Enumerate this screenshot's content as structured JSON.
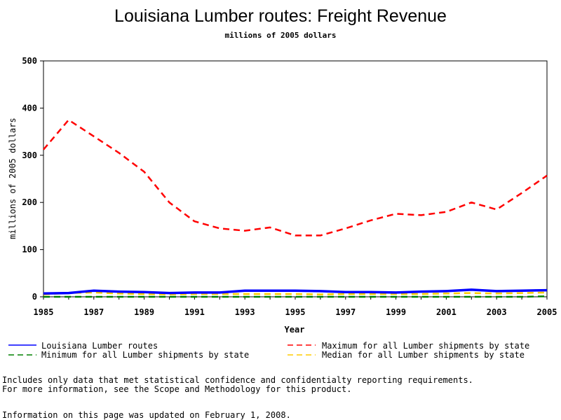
{
  "chart_data": {
    "type": "line",
    "title": "Louisiana Lumber routes: Freight Revenue",
    "subtitle": "millions of 2005 dollars",
    "xlabel": "Year",
    "ylabel": "millions of 2005 dollars",
    "xlim": [
      1985,
      2005
    ],
    "ylim": [
      0,
      500
    ],
    "x_ticks": [
      "1985",
      "1987",
      "1989",
      "1991",
      "1993",
      "1995",
      "1997",
      "1999",
      "2001",
      "2003",
      "2005"
    ],
    "y_ticks": [
      "0",
      "100",
      "200",
      "300",
      "400",
      "500"
    ],
    "grid": false,
    "legend_position": "bottom",
    "x": [
      1985,
      1986,
      1987,
      1988,
      1989,
      1990,
      1991,
      1992,
      1993,
      1994,
      1995,
      1996,
      1997,
      1998,
      1999,
      2000,
      2001,
      2002,
      2003,
      2004,
      2005
    ],
    "series": [
      {
        "name": "Louisiana Lumber routes",
        "color": "#0000ff",
        "style": "solid",
        "values": [
          7,
          8,
          13,
          11,
          10,
          8,
          9,
          9,
          13,
          13,
          13,
          12,
          10,
          10,
          9,
          11,
          12,
          15,
          12,
          13,
          14
        ]
      },
      {
        "name": "Maximum for all Lumber shipments by state",
        "color": "#ff0000",
        "style": "dashed",
        "values": [
          312,
          375,
          340,
          305,
          265,
          200,
          160,
          145,
          140,
          147,
          130,
          130,
          145,
          162,
          176,
          173,
          180,
          200,
          185,
          220,
          257
        ]
      },
      {
        "name": "Minimum for all Lumber shipments by state",
        "color": "#008000",
        "style": "dashed",
        "values": [
          0,
          0,
          0,
          0,
          0,
          0,
          0,
          0,
          0,
          0,
          0,
          0,
          0,
          0,
          0,
          0,
          0,
          0,
          0,
          0,
          1
        ]
      },
      {
        "name": "Median for all Lumber shipments by state",
        "color": "#ffcc00",
        "style": "dashed",
        "values": [
          5,
          8,
          9,
          7,
          6,
          5,
          6,
          6,
          6,
          6,
          6,
          5,
          6,
          6,
          6,
          6,
          7,
          8,
          7,
          8,
          9
        ]
      }
    ]
  },
  "notes": {
    "line1": "Includes only data that met statistical confidence and confidentialty reporting requirements.",
    "line2": "For more information, see the Scope and Methodology for this product.",
    "updated": "Information on this page was updated on February 1, 2008."
  }
}
